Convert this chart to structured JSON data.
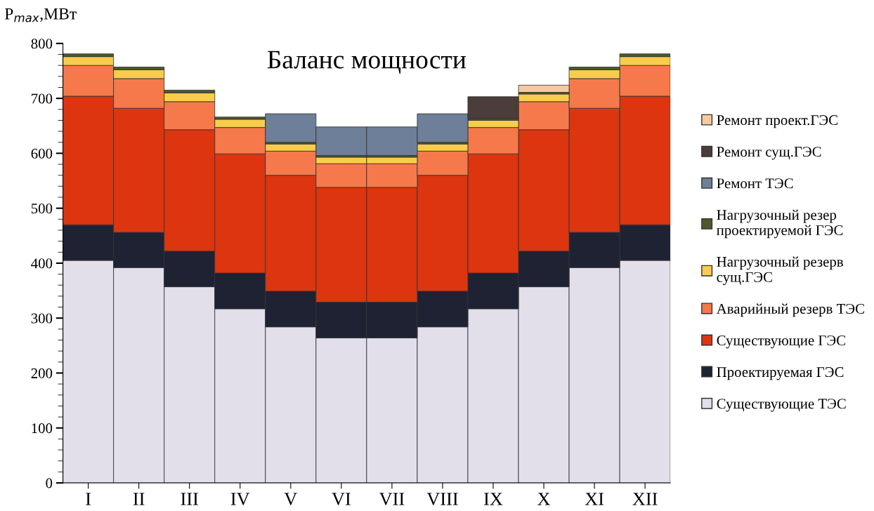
{
  "chart_data": {
    "type": "bar",
    "title": "Баланс мощности",
    "ylabel": "P$_{max}$,МВт",
    "stacked": true,
    "legend": "right",
    "grid": false,
    "categories": [
      "I",
      "II",
      "III",
      "IV",
      "V",
      "VI",
      "VII",
      "VIII",
      "IX",
      "X",
      "XI",
      "XII"
    ],
    "ylim": [
      0,
      800
    ],
    "yticks": [
      0,
      100,
      200,
      300,
      400,
      500,
      600,
      700,
      800
    ],
    "series": [
      {
        "name": "Существующие ТЭС",
        "color": "#e2dfea",
        "values": [
          405,
          392,
          357,
          317,
          284,
          264,
          264,
          284,
          317,
          357,
          392,
          405
        ]
      },
      {
        "name": "Проектируемая ГЭС",
        "color": "#1e2233",
        "values": [
          65,
          64,
          65,
          65,
          65,
          65,
          65,
          65,
          65,
          65,
          64,
          65
        ]
      },
      {
        "name": "Существующие ГЭС",
        "color": "#dc3510",
        "values": [
          234,
          226,
          221,
          217,
          211,
          209,
          209,
          211,
          217,
          221,
          226,
          234
        ]
      },
      {
        "name": "Аварийный резерв ТЭС",
        "color": "#f5794a",
        "values": [
          56,
          54,
          51,
          48,
          44,
          43,
          43,
          44,
          48,
          51,
          54,
          56
        ]
      },
      {
        "name": "Нагрузочный резерв сущ.ГЭС",
        "color": "#f8cd4c",
        "values": [
          16,
          16,
          16,
          15,
          13,
          12,
          12,
          13,
          13,
          14,
          16,
          16
        ]
      },
      {
        "name": "Нагрузочный резер проектируемой ГЭС",
        "color": "#4b5a2b",
        "values": [
          5,
          5,
          5,
          4,
          3,
          3,
          3,
          3,
          3,
          3,
          5,
          5
        ]
      },
      {
        "name": "Ремонт ТЭС",
        "color": "#6e7f99",
        "values": [
          null,
          null,
          null,
          null,
          52,
          52,
          52,
          52,
          null,
          null,
          null,
          null
        ]
      },
      {
        "name": "Ремонт сущ.ГЭС",
        "color": "#4b3d3a",
        "values": [
          null,
          null,
          null,
          null,
          null,
          null,
          null,
          null,
          40,
          null,
          null,
          null
        ]
      },
      {
        "name": "Ремонт проект.ГЭС",
        "color": "#f6caa0",
        "values": [
          null,
          null,
          null,
          null,
          null,
          null,
          null,
          null,
          null,
          13,
          null,
          null
        ]
      }
    ]
  }
}
